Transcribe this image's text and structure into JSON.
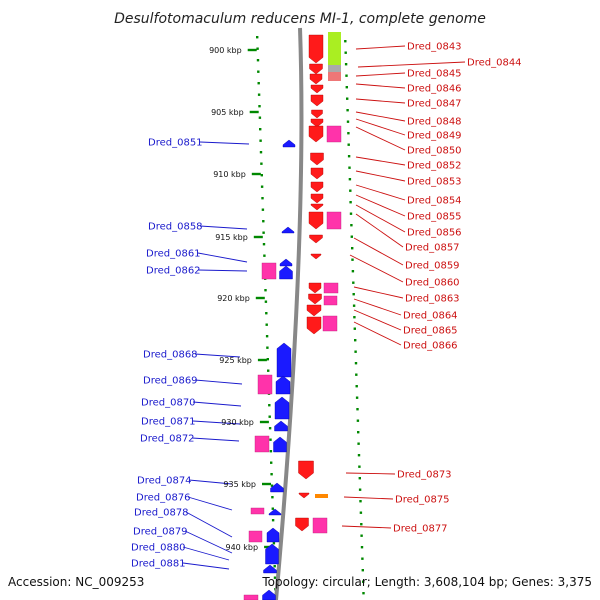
{
  "title": "Desulfotomaculum reducens MI-1, complete genome",
  "accession": "Accession: NC_009253",
  "topology": "Topology: circular; Length: 3,608,104 bp; Genes: 3,375",
  "colors": {
    "forward_gene": "#ff1a1a",
    "reverse_gene": "#1a1aff",
    "cds_box": "#ff33aa",
    "highlight_green": "#aaee22",
    "highlight_gray": "#aaaaaa",
    "highlight_pink": "#ee7777",
    "highlight_orange": "#ff8800",
    "label_forward": "#cc1111",
    "label_reverse": "#1a1acc",
    "tick": "#008800",
    "backbone": "#888888"
  },
  "scale_marks": [
    "900 kbp",
    "905 kbp",
    "910 kbp",
    "915 kbp",
    "920 kbp",
    "925 kbp",
    "930 kbp",
    "935 kbp",
    "940 kbp"
  ],
  "left_labels": [
    "Dred_0851",
    "Dred_0858",
    "Dred_0861",
    "Dred_0862",
    "Dred_0868",
    "Dred_0869",
    "Dred_0870",
    "Dred_0871",
    "Dred_0872",
    "Dred_0874",
    "Dred_0876",
    "Dred_0878",
    "Dred_0879",
    "Dred_0880",
    "Dred_0881"
  ],
  "right_labels": [
    "Dred_0843",
    "Dred_0844",
    "Dred_0845",
    "Dred_0846",
    "Dred_0847",
    "Dred_0848",
    "Dred_0849",
    "Dred_0850",
    "Dred_0852",
    "Dred_0853",
    "Dred_0854",
    "Dred_0855",
    "Dred_0856",
    "Dred_0857",
    "Dred_0859",
    "Dred_0860",
    "Dred_0863",
    "Dred_0864",
    "Dred_0865",
    "Dred_0866",
    "Dred_0873",
    "Dred_0875",
    "Dred_0877"
  ]
}
